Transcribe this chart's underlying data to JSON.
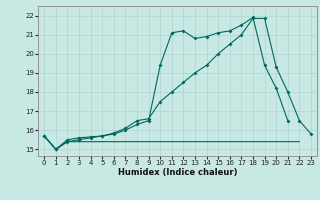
{
  "xlabel": "Humidex (Indice chaleur)",
  "background_color": "#c8e8e4",
  "grid_color": "#b0d4d0",
  "line_color": "#006860",
  "xlim": [
    -0.5,
    23.5
  ],
  "ylim": [
    14.65,
    22.5
  ],
  "xticks": [
    0,
    1,
    2,
    3,
    4,
    5,
    6,
    7,
    8,
    9,
    10,
    11,
    12,
    13,
    14,
    15,
    16,
    17,
    18,
    19,
    20,
    21,
    22,
    23
  ],
  "yticks": [
    15,
    16,
    17,
    18,
    19,
    20,
    21,
    22
  ],
  "line1_x": [
    0,
    1,
    2,
    3,
    4,
    5,
    6,
    7,
    8,
    9,
    10,
    11,
    12,
    13,
    14,
    15,
    16,
    17,
    18,
    19,
    20,
    21,
    22
  ],
  "line1_y": [
    15.7,
    15.0,
    15.4,
    15.4,
    15.4,
    15.4,
    15.4,
    15.4,
    15.4,
    15.4,
    15.4,
    15.4,
    15.4,
    15.4,
    15.4,
    15.4,
    15.4,
    15.4,
    15.4,
    15.4,
    15.4,
    15.4,
    15.4
  ],
  "line2_x": [
    0,
    1,
    2,
    3,
    4,
    5,
    6,
    7,
    8,
    9,
    10,
    11,
    12,
    13,
    14,
    15,
    16,
    17,
    18,
    19,
    20,
    21
  ],
  "line2_y": [
    15.7,
    15.0,
    15.5,
    15.6,
    15.65,
    15.7,
    15.8,
    16.0,
    16.3,
    16.5,
    19.4,
    21.1,
    21.2,
    20.8,
    20.9,
    21.1,
    21.2,
    21.5,
    21.9,
    19.4,
    18.2,
    16.5
  ],
  "line3_x": [
    0,
    1,
    2,
    3,
    4,
    5,
    6,
    7,
    8,
    9,
    10,
    11,
    12,
    13,
    14,
    15,
    16,
    17,
    18,
    19,
    20,
    21,
    22,
    23
  ],
  "line3_y": [
    15.7,
    15.0,
    15.4,
    15.5,
    15.6,
    15.7,
    15.85,
    16.1,
    16.5,
    16.6,
    17.5,
    18.0,
    18.5,
    19.0,
    19.4,
    20.0,
    20.5,
    21.0,
    21.85,
    21.85,
    19.3,
    18.0,
    16.5,
    15.8
  ]
}
